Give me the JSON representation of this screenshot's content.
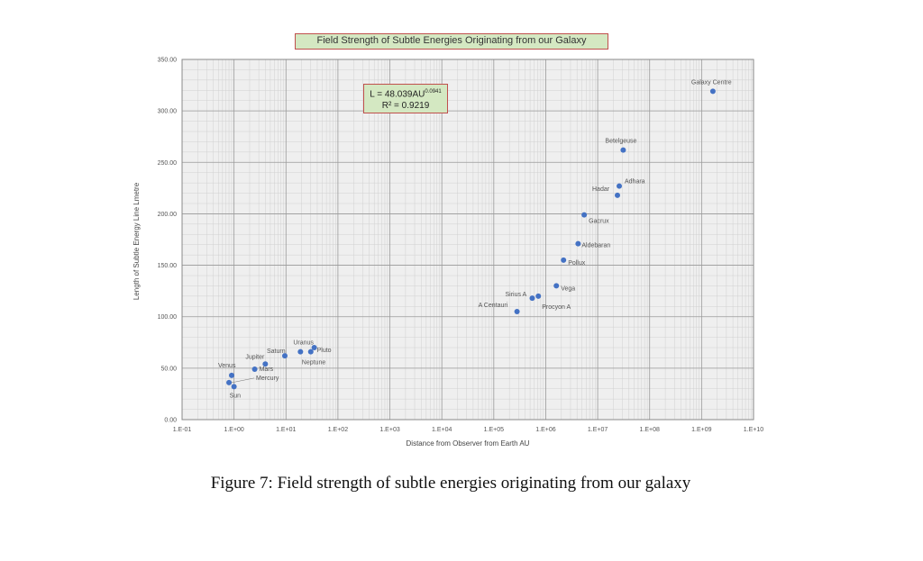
{
  "chart_data": {
    "type": "scatter",
    "title": "Field Strength of Subtle Energies Originating from our Galaxy",
    "xlabel": "Distance from Observer from Earth AU",
    "ylabel": "Length of Subtle Energy Line Lmetre",
    "x_scale": "log",
    "xlim": [
      0.1,
      10000000000
    ],
    "ylim": [
      0,
      350
    ],
    "x_ticks": [
      "1.E-01",
      "1.E+00",
      "1.E+01",
      "1.E+02",
      "1.E+03",
      "1.E+04",
      "1.E+05",
      "1.E+06",
      "1.E+07",
      "1.E+08",
      "1.E+09",
      "1.E+10"
    ],
    "y_ticks": [
      "0.00",
      "50.00",
      "100.00",
      "150.00",
      "200.00",
      "250.00",
      "300.00",
      "350.00"
    ],
    "grid": true,
    "marker_color": "#4472c4",
    "annotation": {
      "equation_base": "L = 48.039AU",
      "equation_exp": "0.0941",
      "r2": "R² = 0.9219"
    },
    "points": [
      {
        "label": "Sun",
        "x": 1.0,
        "y": 32
      },
      {
        "label": "Mercury",
        "x": 0.8,
        "y": 36
      },
      {
        "label": "Venus",
        "x": 0.9,
        "y": 43
      },
      {
        "label": "Mars",
        "x": 2.5,
        "y": 49
      },
      {
        "label": "Jupiter",
        "x": 4.0,
        "y": 54
      },
      {
        "label": "Saturn",
        "x": 9.5,
        "y": 62
      },
      {
        "label": "Uranus",
        "x": 19,
        "y": 66
      },
      {
        "label": "Neptune",
        "x": 30,
        "y": 66
      },
      {
        "label": "Pluto",
        "x": 35,
        "y": 70
      },
      {
        "label": "A Centauri",
        "x": 280000,
        "y": 105
      },
      {
        "label": "Sirius A",
        "x": 550000,
        "y": 118
      },
      {
        "label": "Procyon A",
        "x": 720000,
        "y": 120
      },
      {
        "label": "Vega",
        "x": 1600000,
        "y": 130
      },
      {
        "label": "Pollux",
        "x": 2200000,
        "y": 155
      },
      {
        "label": "Aldebaran",
        "x": 4200000,
        "y": 171
      },
      {
        "label": "Gacrux",
        "x": 5500000,
        "y": 199
      },
      {
        "label": "Hadar",
        "x": 24000000,
        "y": 218
      },
      {
        "label": "Adhara",
        "x": 26000000,
        "y": 227
      },
      {
        "label": "Betelgeuse",
        "x": 31000000,
        "y": 262
      },
      {
        "label": "Galaxy Centre",
        "x": 1650000000,
        "y": 319
      }
    ]
  },
  "caption": "Figure 7: Field strength of subtle energies originating from our galaxy"
}
